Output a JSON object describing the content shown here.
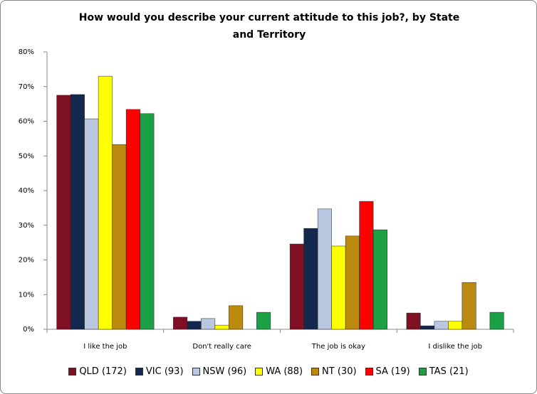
{
  "chart_data": {
    "type": "bar",
    "title": "How would you describe your current attitude to this job?, by State and Territory",
    "categories": [
      "I like the job",
      "Don't really care",
      "The job is okay",
      "I dislike the job"
    ],
    "series": [
      {
        "name": "QLD (172)",
        "color": "#7f1024",
        "values": [
          67.5,
          3.5,
          24.6,
          4.7
        ]
      },
      {
        "name": "VIC (93)",
        "color": "#13284e",
        "values": [
          67.7,
          2.3,
          29.1,
          1.0
        ]
      },
      {
        "name": "NSW (96)",
        "color": "#b9c8e0",
        "values": [
          60.7,
          3.1,
          34.7,
          2.3
        ]
      },
      {
        "name": "WA (88)",
        "color": "#ffff00",
        "values": [
          73.0,
          1.2,
          24.0,
          2.3
        ]
      },
      {
        "name": "NT (30)",
        "color": "#bb8a0e",
        "values": [
          53.3,
          6.8,
          26.9,
          13.5
        ]
      },
      {
        "name": "SA (19)",
        "color": "#ff0000",
        "values": [
          63.4,
          0,
          36.9,
          0
        ]
      },
      {
        "name": "TAS (21)",
        "color": "#1ba045",
        "values": [
          62.2,
          4.9,
          28.7,
          4.9
        ]
      }
    ],
    "ylim": [
      0,
      80
    ],
    "yticks": [
      {
        "value": 0,
        "label": "0%"
      },
      {
        "value": 10,
        "label": "10%"
      },
      {
        "value": 20,
        "label": "20%"
      },
      {
        "value": 30,
        "label": "30%"
      },
      {
        "value": 40,
        "label": "40%"
      },
      {
        "value": 50,
        "label": "50%"
      },
      {
        "value": 60,
        "label": "60%"
      },
      {
        "value": 70,
        "label": "70%"
      },
      {
        "value": 80,
        "label": "80%"
      }
    ],
    "grid": false,
    "legend": "bottom"
  }
}
